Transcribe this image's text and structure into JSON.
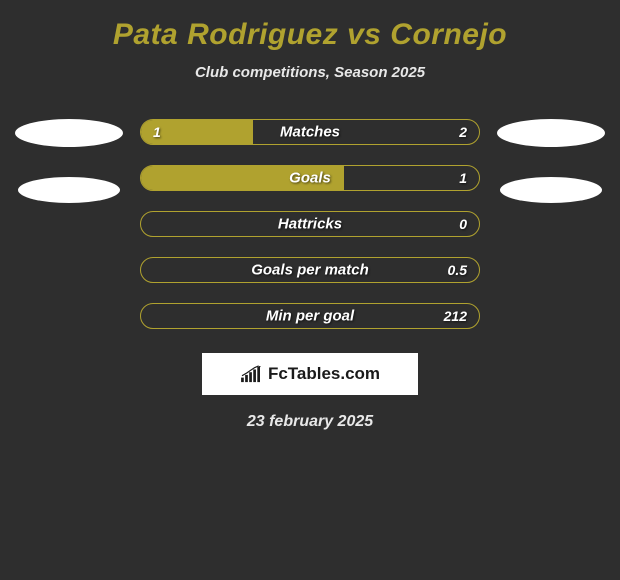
{
  "header": {
    "title": "Pata Rodriguez vs Cornejo",
    "title_color": "#b0a22f",
    "subtitle": "Club competitions, Season 2025"
  },
  "colors": {
    "background": "#2e2e2e",
    "left_fill": "#b0a22f",
    "right_fill": "#2e2e2e",
    "border": "#b0a22f",
    "avatar": "#ffffff"
  },
  "stats": [
    {
      "label": "Matches",
      "left_val": "1",
      "right_val": "2",
      "left_pct": 33,
      "show_left": true,
      "show_right": true
    },
    {
      "label": "Goals",
      "left_val": "",
      "right_val": "1",
      "left_pct": 60,
      "show_left": false,
      "show_right": true
    },
    {
      "label": "Hattricks",
      "left_val": "",
      "right_val": "0",
      "left_pct": 0,
      "show_left": false,
      "show_right": true
    },
    {
      "label": "Goals per match",
      "left_val": "",
      "right_val": "0.5",
      "left_pct": 0,
      "show_left": false,
      "show_right": true
    },
    {
      "label": "Min per goal",
      "left_val": "",
      "right_val": "212",
      "left_pct": 0,
      "show_left": false,
      "show_right": true
    }
  ],
  "brand": {
    "text": "FcTables.com"
  },
  "date": "23 february 2025"
}
